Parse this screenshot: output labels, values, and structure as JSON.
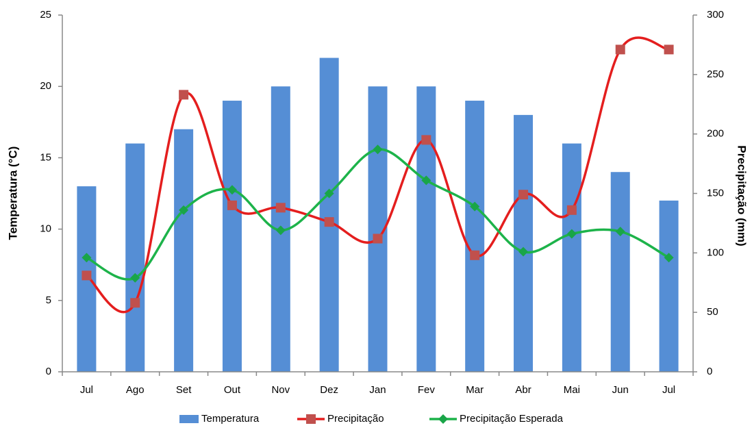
{
  "chart_data": {
    "type": "bar-line",
    "categories": [
      "Jul",
      "Ago",
      "Set",
      "Out",
      "Nov",
      "Dez",
      "Jan",
      "Fev",
      "Mar",
      "Abr",
      "Mai",
      "Jun",
      "Jul"
    ],
    "ylabel": "Temperatura (°C)",
    "y2label": "Precipitação (mm)",
    "ylim": [
      0,
      25
    ],
    "yticks": [
      0,
      5,
      10,
      15,
      20,
      25
    ],
    "y2lim": [
      0,
      300
    ],
    "y2ticks": [
      0,
      50,
      100,
      150,
      200,
      250,
      300
    ],
    "series": [
      {
        "name": "Temperatura",
        "type": "bar",
        "color": "#558ed5",
        "values": [
          13,
          16,
          17,
          19,
          20,
          22,
          20,
          20,
          19,
          18,
          16,
          14,
          12
        ]
      },
      {
        "name": "Precipitação",
        "type": "line",
        "axis": "y2",
        "color": "#e41e1e",
        "marker": "square",
        "marker_color": "#c0504d",
        "values": [
          81,
          58,
          233,
          140,
          138,
          126,
          112,
          195,
          98,
          149,
          136,
          271,
          271
        ]
      },
      {
        "name": "Precipitação Esperada",
        "type": "line",
        "axis": "y2",
        "color": "#1db34a",
        "marker": "diamond",
        "marker_color": "#19a548",
        "values": [
          96,
          79,
          136,
          153,
          119,
          150,
          187,
          161,
          139,
          101,
          116,
          118,
          96
        ]
      }
    ],
    "legend": "bottom"
  }
}
